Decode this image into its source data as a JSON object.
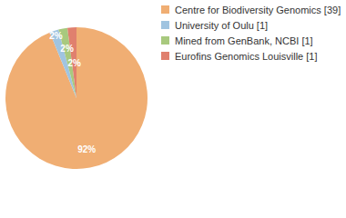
{
  "chart_data": {
    "type": "pie",
    "categories": [
      "Centre for Biodiversity Genomics [39]",
      "University of Oulu [1]",
      "Mined from GenBank, NCBI [1]",
      "Eurofins Genomics Louisville [1]"
    ],
    "values": [
      92,
      2,
      2,
      2
    ],
    "value_labels": [
      "92%",
      "2%",
      "2%",
      "2%"
    ],
    "colors": [
      "#f0ae73",
      "#a0c4e0",
      "#a8c97e",
      "#e0806e"
    ],
    "data_labels": true,
    "legend": "top-right"
  }
}
